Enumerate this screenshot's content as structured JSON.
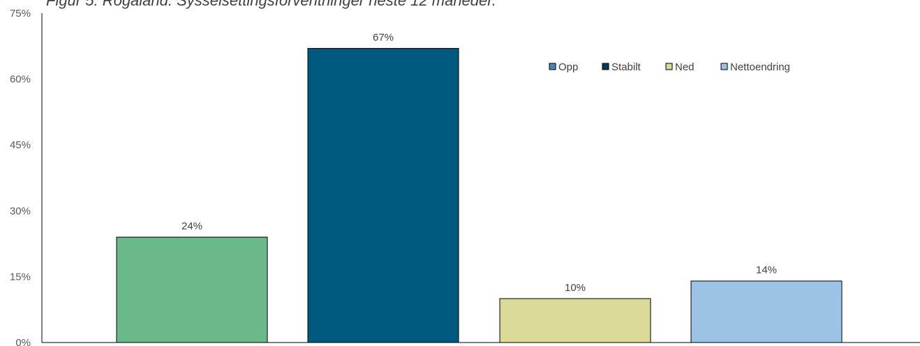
{
  "chart_data": {
    "type": "bar",
    "title": "Figur 5: Rogaland: Sysselsettingsforventninger neste 12 måneder.",
    "xlabel": "",
    "ylabel": "",
    "ylim": [
      0,
      75
    ],
    "y_ticks": [
      0,
      15,
      30,
      45,
      60,
      75
    ],
    "y_tick_format": "percent",
    "grid": false,
    "legend_position": "top-right",
    "series": [
      {
        "name": "Opp",
        "values": [
          24
        ],
        "color": "#6BB88A",
        "legend_color": "#4F81BD",
        "label": "24%"
      },
      {
        "name": "Stabilt",
        "values": [
          67
        ],
        "color": "#005A80",
        "legend_color": "#003B5C",
        "label": "67%"
      },
      {
        "name": "Ned",
        "values": [
          10
        ],
        "color": "#D9D998",
        "legend_color": "#D9D998",
        "label": "10%"
      },
      {
        "name": "Nettoendring",
        "values": [
          14
        ],
        "color": "#9CC3E5",
        "legend_color": "#9CC3E5",
        "label": "14%"
      }
    ]
  }
}
